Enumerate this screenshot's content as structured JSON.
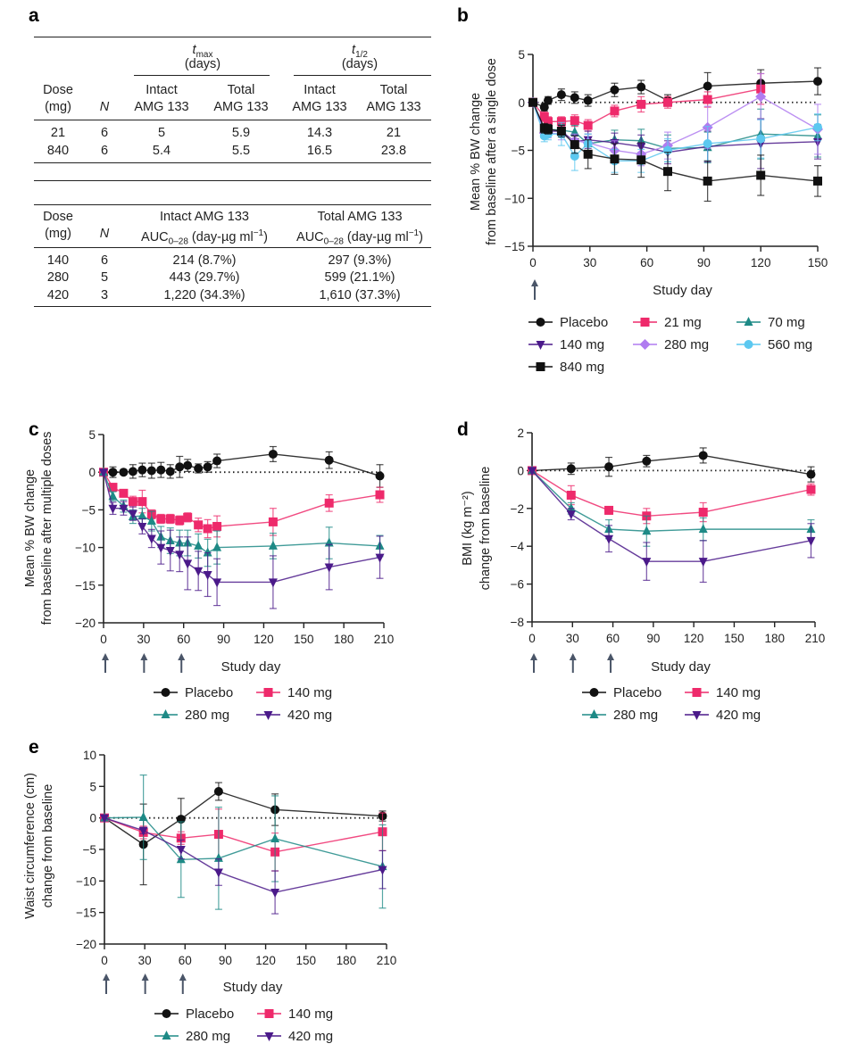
{
  "panels": {
    "a": "a",
    "b": "b",
    "c": "c",
    "d": "d",
    "e": "e"
  },
  "table_a": {
    "top": {
      "group_tmax": {
        "sym": "t",
        "sub": "max",
        "unit": "(days)"
      },
      "group_thalf": {
        "sym": "t",
        "sub": "1/2",
        "unit": "(days)"
      },
      "headers": {
        "dose1": "Dose",
        "dose2": "(mg)",
        "n": "N",
        "intact1": "Intact",
        "total1": "Total",
        "amg": "AMG 133"
      },
      "rows": [
        {
          "dose": "21",
          "n": "6",
          "tmax_intact": "5",
          "tmax_total": "5.9",
          "thalf_intact": "14.3",
          "thalf_total": "21"
        },
        {
          "dose": "840",
          "n": "6",
          "tmax_intact": "5.4",
          "tmax_total": "5.5",
          "thalf_intact": "16.5",
          "thalf_total": "23.8"
        }
      ]
    },
    "bottom": {
      "headers": {
        "dose1": "Dose",
        "dose2": "(mg)",
        "n": "N",
        "intact": "Intact AMG 133",
        "total": "Total AMG 133",
        "auc": "AUC",
        "auc_sub": "0–28",
        "auc_unit": " (day-µg ml",
        "auc_sup": "−1",
        "auc_close": ")"
      },
      "rows": [
        {
          "dose": "140",
          "n": "6",
          "intact": "214 (8.7%)",
          "total": "297 (9.3%)"
        },
        {
          "dose": "280",
          "n": "5",
          "intact": "443 (29.7%)",
          "total": "599 (21.1%)"
        },
        {
          "dose": "420",
          "n": "3",
          "intact": "1,220 (34.3%)",
          "total": "1,610 (37.3%)"
        }
      ]
    }
  },
  "chart_data": [
    {
      "id": "b",
      "type": "line",
      "xlabel": "Study day",
      "ylabel": [
        "Mean % BW change",
        "from baseline after a single dose"
      ],
      "xlim": [
        0,
        150
      ],
      "ylim": [
        -15,
        5
      ],
      "xticks": [
        0,
        30,
        60,
        90,
        120,
        150
      ],
      "yticks": [
        -15,
        -10,
        -5,
        0,
        5
      ],
      "dose_days": [
        0
      ],
      "zero_line": true,
      "legend_columns": 3,
      "series": [
        {
          "name": "Placebo",
          "color": "#111111",
          "marker": "circle",
          "x": [
            0,
            6,
            8,
            15,
            22,
            29,
            43,
            57,
            71,
            92,
            120,
            150
          ],
          "y": [
            0,
            -0.5,
            0.2,
            0.8,
            0.5,
            0.2,
            1.3,
            1.6,
            0.2,
            1.7,
            2.0,
            2.2
          ],
          "err": [
            0,
            0.4,
            0.4,
            0.6,
            0.6,
            0.6,
            0.7,
            0.7,
            0.6,
            1.4,
            1.4,
            1.4
          ]
        },
        {
          "name": "21 mg",
          "color": "#ee2a6b",
          "marker": "square",
          "x": [
            0,
            6,
            8,
            15,
            22,
            29,
            43,
            57,
            71,
            92,
            120
          ],
          "y": [
            0,
            -1.5,
            -2.0,
            -2.0,
            -1.9,
            -2.4,
            -0.9,
            -0.2,
            0.0,
            0.3,
            1.4
          ],
          "err": [
            0,
            0.5,
            0.5,
            0.5,
            0.6,
            0.6,
            0.6,
            0.8,
            0.6,
            0.8,
            1.6
          ]
        },
        {
          "name": "70 mg",
          "color": "#1e8a86",
          "marker": "triangle-up",
          "x": [
            0,
            6,
            8,
            15,
            22,
            29,
            43,
            57,
            71,
            92,
            120,
            150
          ],
          "y": [
            0,
            -2.8,
            -2.8,
            -2.9,
            -3.1,
            -4.3,
            -3.9,
            -4.0,
            -4.8,
            -4.7,
            -3.3,
            -3.5
          ],
          "err": [
            0,
            0.5,
            0.5,
            0.6,
            0.7,
            1.0,
            1.0,
            1.2,
            1.4,
            1.6,
            2.6,
            2.2
          ]
        },
        {
          "name": "140 mg",
          "color": "#4b1a8a",
          "marker": "triangle-down",
          "x": [
            0,
            6,
            8,
            15,
            22,
            29,
            43,
            57,
            71,
            92,
            120,
            150
          ],
          "y": [
            0,
            -2.8,
            -3.0,
            -3.0,
            -4.1,
            -3.9,
            -4.2,
            -4.6,
            -5.2,
            -4.6,
            -4.3,
            -4.1
          ],
          "err": [
            0,
            0.5,
            0.5,
            0.6,
            0.7,
            0.9,
            1.0,
            1.2,
            1.2,
            1.6,
            2.6,
            1.8
          ]
        },
        {
          "name": "280 mg",
          "color": "#b07cf0",
          "marker": "diamond",
          "x": [
            0,
            6,
            8,
            15,
            22,
            29,
            43,
            57,
            71,
            92,
            120,
            150
          ],
          "y": [
            0,
            -3.2,
            -3.2,
            -3.3,
            -4.0,
            -4.2,
            -5.0,
            -5.4,
            -4.5,
            -2.6,
            0.6,
            -2.8
          ],
          "err": [
            0,
            0.5,
            0.5,
            0.6,
            0.7,
            0.9,
            1.0,
            1.2,
            1.4,
            2.2,
            2.4,
            2.6
          ]
        },
        {
          "name": "560 mg",
          "color": "#5cc8f0",
          "marker": "circle",
          "x": [
            0,
            6,
            8,
            15,
            22,
            29,
            43,
            57,
            71,
            92,
            120,
            150
          ],
          "y": [
            0,
            -3.5,
            -3.3,
            -3.3,
            -5.6,
            -4.3,
            -6.1,
            -6.1,
            -5.0,
            -4.3,
            -3.8,
            -2.6
          ],
          "err": [
            0,
            0.6,
            0.6,
            1.2,
            1.5,
            1.0,
            1.2,
            1.2,
            1.2,
            1.8,
            2.0,
            1.4
          ]
        },
        {
          "name": "840 mg",
          "color": "#111111",
          "marker": "square",
          "x": [
            0,
            6,
            8,
            15,
            22,
            29,
            43,
            57,
            71,
            92,
            120,
            150
          ],
          "y": [
            0,
            -2.7,
            -2.8,
            -3.0,
            -4.4,
            -5.4,
            -5.9,
            -6.0,
            -7.2,
            -8.2,
            -7.6,
            -8.2
          ],
          "err": [
            0,
            0.5,
            0.5,
            0.6,
            0.9,
            1.5,
            1.6,
            1.8,
            2.0,
            2.1,
            2.1,
            1.6
          ]
        }
      ]
    },
    {
      "id": "c",
      "type": "line",
      "xlabel": "Study day",
      "ylabel": [
        "Mean % BW change",
        "from baseline after multiple doses"
      ],
      "xlim": [
        0,
        210
      ],
      "ylim": [
        -20,
        5
      ],
      "xticks": [
        0,
        30,
        60,
        90,
        120,
        150,
        180,
        210
      ],
      "yticks": [
        -20,
        -15,
        -10,
        -5,
        0,
        5
      ],
      "dose_days": [
        0,
        29,
        57
      ],
      "zero_line": true,
      "legend_columns": 2,
      "series": [
        {
          "name": "Placebo",
          "color": "#111111",
          "marker": "circle",
          "x": [
            0,
            7,
            15,
            22,
            29,
            36,
            43,
            50,
            57,
            63,
            71,
            78,
            85,
            127,
            169,
            207
          ],
          "y": [
            0,
            0,
            0,
            0.1,
            0.3,
            0.2,
            0.3,
            0.1,
            0.7,
            0.9,
            0.5,
            0.7,
            1.5,
            2.4,
            1.6,
            -0.5
          ],
          "err": [
            0,
            0.7,
            0.3,
            0.9,
            0.9,
            1.0,
            1.0,
            0.9,
            1.4,
            0.8,
            0.6,
            0.7,
            0.9,
            1.0,
            1.1,
            1.5
          ]
        },
        {
          "name": "140 mg",
          "color": "#ee2a6b",
          "marker": "square",
          "x": [
            0,
            7,
            15,
            22,
            29,
            36,
            43,
            50,
            57,
            63,
            71,
            78,
            85,
            127,
            169,
            207
          ],
          "y": [
            0,
            -2,
            -2.8,
            -3.9,
            -3.9,
            -5.6,
            -6.2,
            -6.2,
            -6.4,
            -6.0,
            -7.0,
            -7.5,
            -7.2,
            -6.6,
            -4.1,
            -3.0
          ],
          "err": [
            0,
            0.4,
            0.5,
            0.7,
            1.5,
            0.6,
            0.6,
            0.6,
            0.6,
            0.6,
            0.9,
            1.2,
            1.4,
            1.8,
            1.1,
            1.0
          ]
        },
        {
          "name": "280 mg",
          "color": "#1e8a86",
          "marker": "triangle-up",
          "x": [
            0,
            7,
            15,
            22,
            29,
            36,
            43,
            50,
            57,
            63,
            71,
            78,
            85,
            127,
            169,
            207
          ],
          "y": [
            0,
            -3.2,
            -4.5,
            -5.9,
            -5.8,
            -6.5,
            -8.6,
            -9.1,
            -9.4,
            -9.4,
            -9.8,
            -10.7,
            -10.0,
            -9.8,
            -9.4,
            -9.8
          ],
          "err": [
            0,
            0.6,
            0.8,
            0.9,
            1.0,
            1.3,
            1.4,
            1.7,
            1.7,
            1.7,
            1.6,
            1.8,
            2.2,
            1.7,
            2.1,
            1.4
          ]
        },
        {
          "name": "420 mg",
          "color": "#4b1a8a",
          "marker": "triangle-down",
          "x": [
            0,
            7,
            15,
            22,
            29,
            36,
            43,
            50,
            57,
            63,
            71,
            78,
            85,
            127,
            169,
            207
          ],
          "y": [
            0,
            -4.8,
            -4.8,
            -5.5,
            -7.2,
            -8.8,
            -10.0,
            -10.4,
            -10.9,
            -12.1,
            -13.1,
            -13.6,
            -14.6,
            -14.6,
            -12.6,
            -11.3
          ],
          "err": [
            0,
            0.8,
            0.9,
            0.9,
            1.0,
            1.2,
            2.2,
            2.7,
            2.3,
            3.5,
            2.6,
            2.9,
            3.1,
            3.5,
            3.0,
            2.8
          ]
        }
      ]
    },
    {
      "id": "d",
      "type": "line",
      "xlabel": "Study day",
      "ylabel": [
        "BMI (kg m⁻²)",
        "change from baseline"
      ],
      "xlim": [
        0,
        210
      ],
      "ylim": [
        -8,
        2
      ],
      "xticks": [
        0,
        30,
        60,
        90,
        120,
        150,
        180,
        210
      ],
      "yticks": [
        -8,
        -6,
        -4,
        -2,
        0,
        2
      ],
      "dose_days": [
        0,
        29,
        57
      ],
      "zero_line": true,
      "legend_columns": 2,
      "series": [
        {
          "name": "Placebo",
          "color": "#111111",
          "marker": "circle",
          "x": [
            0,
            29,
            57,
            85,
            127,
            207
          ],
          "y": [
            0,
            0.1,
            0.2,
            0.5,
            0.8,
            -0.2
          ],
          "err": [
            0,
            0.3,
            0.5,
            0.3,
            0.4,
            0.4
          ]
        },
        {
          "name": "140 mg",
          "color": "#ee2a6b",
          "marker": "square",
          "x": [
            0,
            29,
            57,
            85,
            127,
            207
          ],
          "y": [
            0,
            -1.3,
            -2.1,
            -2.4,
            -2.2,
            -1.0
          ],
          "err": [
            0,
            0.5,
            0.2,
            0.4,
            0.5,
            0.3
          ]
        },
        {
          "name": "280 mg",
          "color": "#1e8a86",
          "marker": "triangle-up",
          "x": [
            0,
            29,
            57,
            85,
            127,
            207
          ],
          "y": [
            0,
            -2.0,
            -3.1,
            -3.2,
            -3.1,
            -3.1
          ],
          "err": [
            0,
            0.3,
            0.5,
            0.8,
            0.6,
            0.5
          ]
        },
        {
          "name": "420 mg",
          "color": "#4b1a8a",
          "marker": "triangle-down",
          "x": [
            0,
            29,
            57,
            85,
            127,
            207
          ],
          "y": [
            0,
            -2.3,
            -3.6,
            -4.8,
            -4.8,
            -3.7
          ],
          "err": [
            0,
            0.3,
            0.7,
            1.0,
            1.1,
            0.9
          ]
        }
      ]
    },
    {
      "id": "e",
      "type": "line",
      "xlabel": "Study day",
      "ylabel": [
        "Waist circumference (cm)",
        "change from baseline"
      ],
      "xlim": [
        0,
        210
      ],
      "ylim": [
        -20,
        10
      ],
      "xticks": [
        0,
        30,
        60,
        90,
        120,
        150,
        180,
        210
      ],
      "yticks": [
        -20,
        -15,
        -10,
        -5,
        0,
        5,
        10
      ],
      "dose_days": [
        0,
        29,
        57
      ],
      "zero_line": true,
      "legend_columns": 2,
      "series": [
        {
          "name": "Placebo",
          "color": "#111111",
          "marker": "circle",
          "x": [
            0,
            29,
            57,
            85,
            127,
            207
          ],
          "y": [
            0,
            -4.2,
            -0.2,
            4.2,
            1.3,
            0.3
          ],
          "err": [
            0,
            6.4,
            3.3,
            1.4,
            2.5,
            0.8
          ]
        },
        {
          "name": "140 mg",
          "color": "#ee2a6b",
          "marker": "square",
          "x": [
            0,
            29,
            57,
            85,
            127,
            207
          ],
          "y": [
            0,
            -2.3,
            -3.2,
            -2.6,
            -5.4,
            -2.2
          ],
          "err": [
            0,
            1.0,
            1.0,
            4.0,
            3.0,
            3.0
          ]
        },
        {
          "name": "280 mg",
          "color": "#1e8a86",
          "marker": "triangle-up",
          "x": [
            0,
            29,
            57,
            85,
            127,
            207
          ],
          "y": [
            0,
            0.1,
            -6.6,
            -6.4,
            -3.3,
            -7.7
          ],
          "err": [
            0,
            6.7,
            6.0,
            8.1,
            6.8,
            6.6
          ]
        },
        {
          "name": "420 mg",
          "color": "#4b1a8a",
          "marker": "triangle-down",
          "x": [
            0,
            29,
            57,
            85,
            127,
            207
          ],
          "y": [
            0,
            -2.0,
            -5.0,
            -8.6,
            -11.8,
            -8.2
          ],
          "err": [
            0,
            0.5,
            1.5,
            2.1,
            3.4,
            3.0
          ]
        }
      ]
    }
  ]
}
